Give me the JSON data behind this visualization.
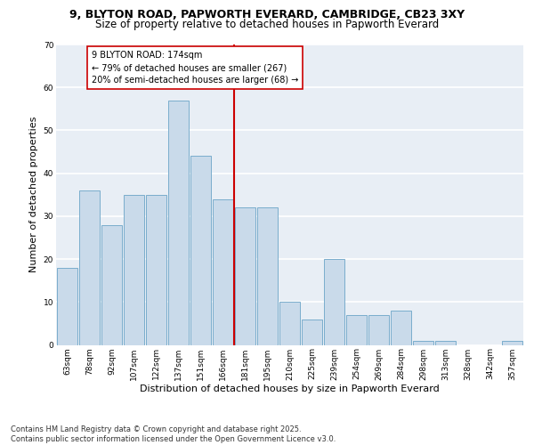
{
  "title_line1": "9, BLYTON ROAD, PAPWORTH EVERARD, CAMBRIDGE, CB23 3XY",
  "title_line2": "Size of property relative to detached houses in Papworth Everard",
  "xlabel": "Distribution of detached houses by size in Papworth Everard",
  "ylabel": "Number of detached properties",
  "categories": [
    "63sqm",
    "78sqm",
    "92sqm",
    "107sqm",
    "122sqm",
    "137sqm",
    "151sqm",
    "166sqm",
    "181sqm",
    "195sqm",
    "210sqm",
    "225sqm",
    "239sqm",
    "254sqm",
    "269sqm",
    "284sqm",
    "298sqm",
    "313sqm",
    "328sqm",
    "342sqm",
    "357sqm"
  ],
  "values": [
    18,
    36,
    28,
    35,
    35,
    57,
    44,
    34,
    32,
    32,
    10,
    6,
    20,
    7,
    7,
    8,
    1,
    1,
    0,
    0,
    1
  ],
  "bar_color": "#c9daea",
  "bar_edge_color": "#7aadcc",
  "vline_index": 8,
  "vline_color": "#cc0000",
  "annotation_text": "9 BLYTON ROAD: 174sqm\n← 79% of detached houses are smaller (267)\n20% of semi-detached houses are larger (68) →",
  "annotation_box_facecolor": "#ffffff",
  "annotation_box_edgecolor": "#cc0000",
  "ylim": [
    0,
    70
  ],
  "yticks": [
    0,
    10,
    20,
    30,
    40,
    50,
    60,
    70
  ],
  "bg_color": "#e8eef5",
  "grid_color": "#ffffff",
  "footnote": "Contains HM Land Registry data © Crown copyright and database right 2025.\nContains public sector information licensed under the Open Government Licence v3.0.",
  "title_fontsize": 9,
  "subtitle_fontsize": 8.5,
  "axis_label_fontsize": 8,
  "tick_fontsize": 6.5,
  "annotation_fontsize": 7,
  "footnote_fontsize": 6
}
